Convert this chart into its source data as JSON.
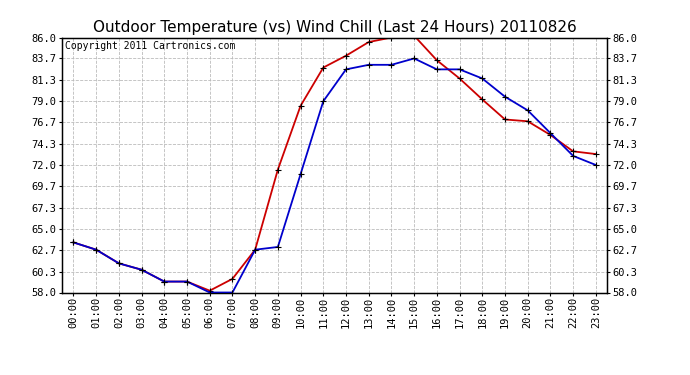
{
  "title": "Outdoor Temperature (vs) Wind Chill (Last 24 Hours) 20110826",
  "copyright": "Copyright 2011 Cartronics.com",
  "hours": [
    "00:00",
    "01:00",
    "02:00",
    "03:00",
    "04:00",
    "05:00",
    "06:00",
    "07:00",
    "08:00",
    "09:00",
    "10:00",
    "11:00",
    "12:00",
    "13:00",
    "14:00",
    "15:00",
    "16:00",
    "17:00",
    "18:00",
    "19:00",
    "20:00",
    "21:00",
    "22:00",
    "23:00"
  ],
  "outdoor_temp": [
    63.5,
    62.7,
    61.2,
    60.5,
    59.2,
    59.2,
    58.2,
    59.5,
    62.7,
    71.5,
    78.5,
    82.7,
    84.0,
    85.5,
    86.0,
    86.2,
    83.5,
    81.5,
    79.2,
    77.0,
    76.8,
    75.3,
    73.5,
    73.2
  ],
  "wind_chill": [
    63.5,
    62.7,
    61.2,
    60.5,
    59.2,
    59.2,
    58.0,
    58.0,
    62.7,
    63.0,
    71.0,
    79.0,
    82.5,
    83.0,
    83.0,
    83.7,
    82.5,
    82.5,
    81.5,
    79.5,
    78.0,
    75.5,
    73.0,
    72.0
  ],
  "temp_color": "#cc0000",
  "wind_chill_color": "#0000cc",
  "bg_color": "#ffffff",
  "plot_bg_color": "#ffffff",
  "grid_color": "#bbbbbb",
  "ylim_min": 58.0,
  "ylim_max": 86.0,
  "yticks": [
    58.0,
    60.3,
    62.7,
    65.0,
    67.3,
    69.7,
    72.0,
    74.3,
    76.7,
    79.0,
    81.3,
    83.7,
    86.0
  ],
  "ytick_labels": [
    "58.0",
    "60.3",
    "62.7",
    "65.0",
    "67.3",
    "69.7",
    "72.0",
    "74.3",
    "76.7",
    "79.0",
    "81.3",
    "83.7",
    "86.0"
  ],
  "title_fontsize": 11,
  "copyright_fontsize": 7,
  "tick_fontsize": 7.5,
  "marker": "+",
  "marker_size": 5,
  "line_width": 1.3
}
